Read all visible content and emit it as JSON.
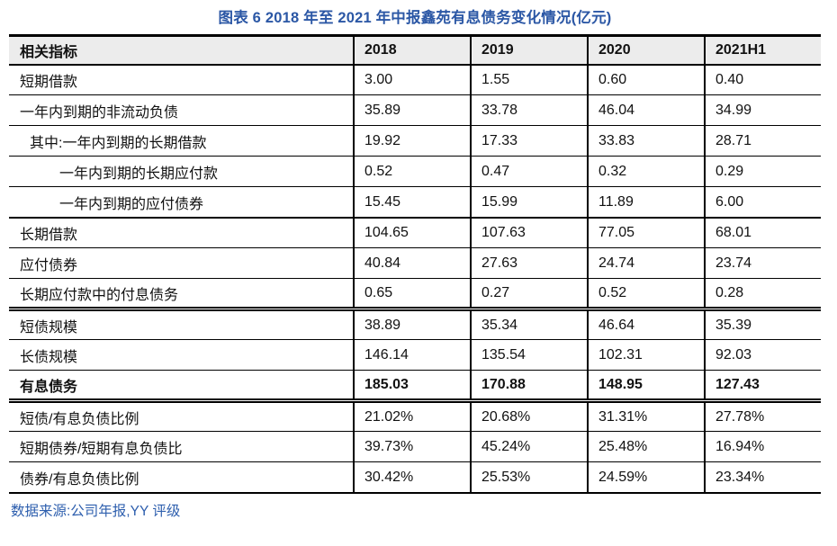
{
  "title": "图表 6 2018 年至 2021 年中报鑫苑有息债务变化情况(亿元)",
  "source": "数据来源:公司年报,YY 评级",
  "colors": {
    "title_text": "#2B57A5",
    "source_text": "#2E5FAE",
    "header_bg": "#ECECEC",
    "border": "#000000"
  },
  "chart_data": {
    "type": "table",
    "title": "图表 6 2018 年至 2021 年中报鑫苑有息债务变化情况(亿元)",
    "columns": [
      "相关指标",
      "2018",
      "2019",
      "2020",
      "2021H1"
    ],
    "rows": [
      {
        "label": "短期借款",
        "indent": 0,
        "bold": false,
        "border_top": "none",
        "values": [
          "3.00",
          "1.55",
          "0.60",
          "0.40"
        ]
      },
      {
        "label": "一年内到期的非流动负债",
        "indent": 0,
        "bold": false,
        "border_top": "thin",
        "values": [
          "35.89",
          "33.78",
          "46.04",
          "34.99"
        ]
      },
      {
        "label": "其中:一年内到期的长期借款",
        "indent": 1,
        "bold": false,
        "border_top": "thin",
        "values": [
          "19.92",
          "17.33",
          "33.83",
          "28.71"
        ]
      },
      {
        "label": "一年内到期的长期应付款",
        "indent": 2,
        "bold": false,
        "border_top": "thin",
        "values": [
          "0.52",
          "0.47",
          "0.32",
          "0.29"
        ]
      },
      {
        "label": "一年内到期的应付债券",
        "indent": 2,
        "bold": false,
        "border_top": "thin",
        "values": [
          "15.45",
          "15.99",
          "11.89",
          "6.00"
        ]
      },
      {
        "label": "长期借款",
        "indent": 0,
        "bold": false,
        "border_top": "thick",
        "values": [
          "104.65",
          "107.63",
          "77.05",
          "68.01"
        ]
      },
      {
        "label": "应付债券",
        "indent": 0,
        "bold": false,
        "border_top": "thin",
        "values": [
          "40.84",
          "27.63",
          "24.74",
          "23.74"
        ]
      },
      {
        "label": "长期应付款中的付息债务",
        "indent": 0,
        "bold": false,
        "border_top": "thin",
        "values": [
          "0.65",
          "0.27",
          "0.52",
          "0.28"
        ]
      },
      {
        "label": "短债规模",
        "indent": 0,
        "bold": false,
        "border_top": "double",
        "values": [
          "38.89",
          "35.34",
          "46.64",
          "35.39"
        ]
      },
      {
        "label": "长债规模",
        "indent": 0,
        "bold": false,
        "border_top": "thin",
        "values": [
          "146.14",
          "135.54",
          "102.31",
          "92.03"
        ]
      },
      {
        "label": "有息债务",
        "indent": 0,
        "bold": true,
        "border_top": "thin",
        "values": [
          "185.03",
          "170.88",
          "148.95",
          "127.43"
        ]
      },
      {
        "label": "短债/有息负债比例",
        "indent": 0,
        "bold": false,
        "border_top": "double",
        "values": [
          "21.02%",
          "20.68%",
          "31.31%",
          "27.78%"
        ]
      },
      {
        "label": "短期债券/短期有息负债比",
        "indent": 0,
        "bold": false,
        "border_top": "thin",
        "values": [
          "39.73%",
          "45.24%",
          "25.48%",
          "16.94%"
        ]
      },
      {
        "label": "债券/有息负债比例",
        "indent": 0,
        "bold": false,
        "border_top": "thin",
        "values": [
          "30.42%",
          "25.53%",
          "24.59%",
          "23.34%"
        ]
      }
    ]
  }
}
